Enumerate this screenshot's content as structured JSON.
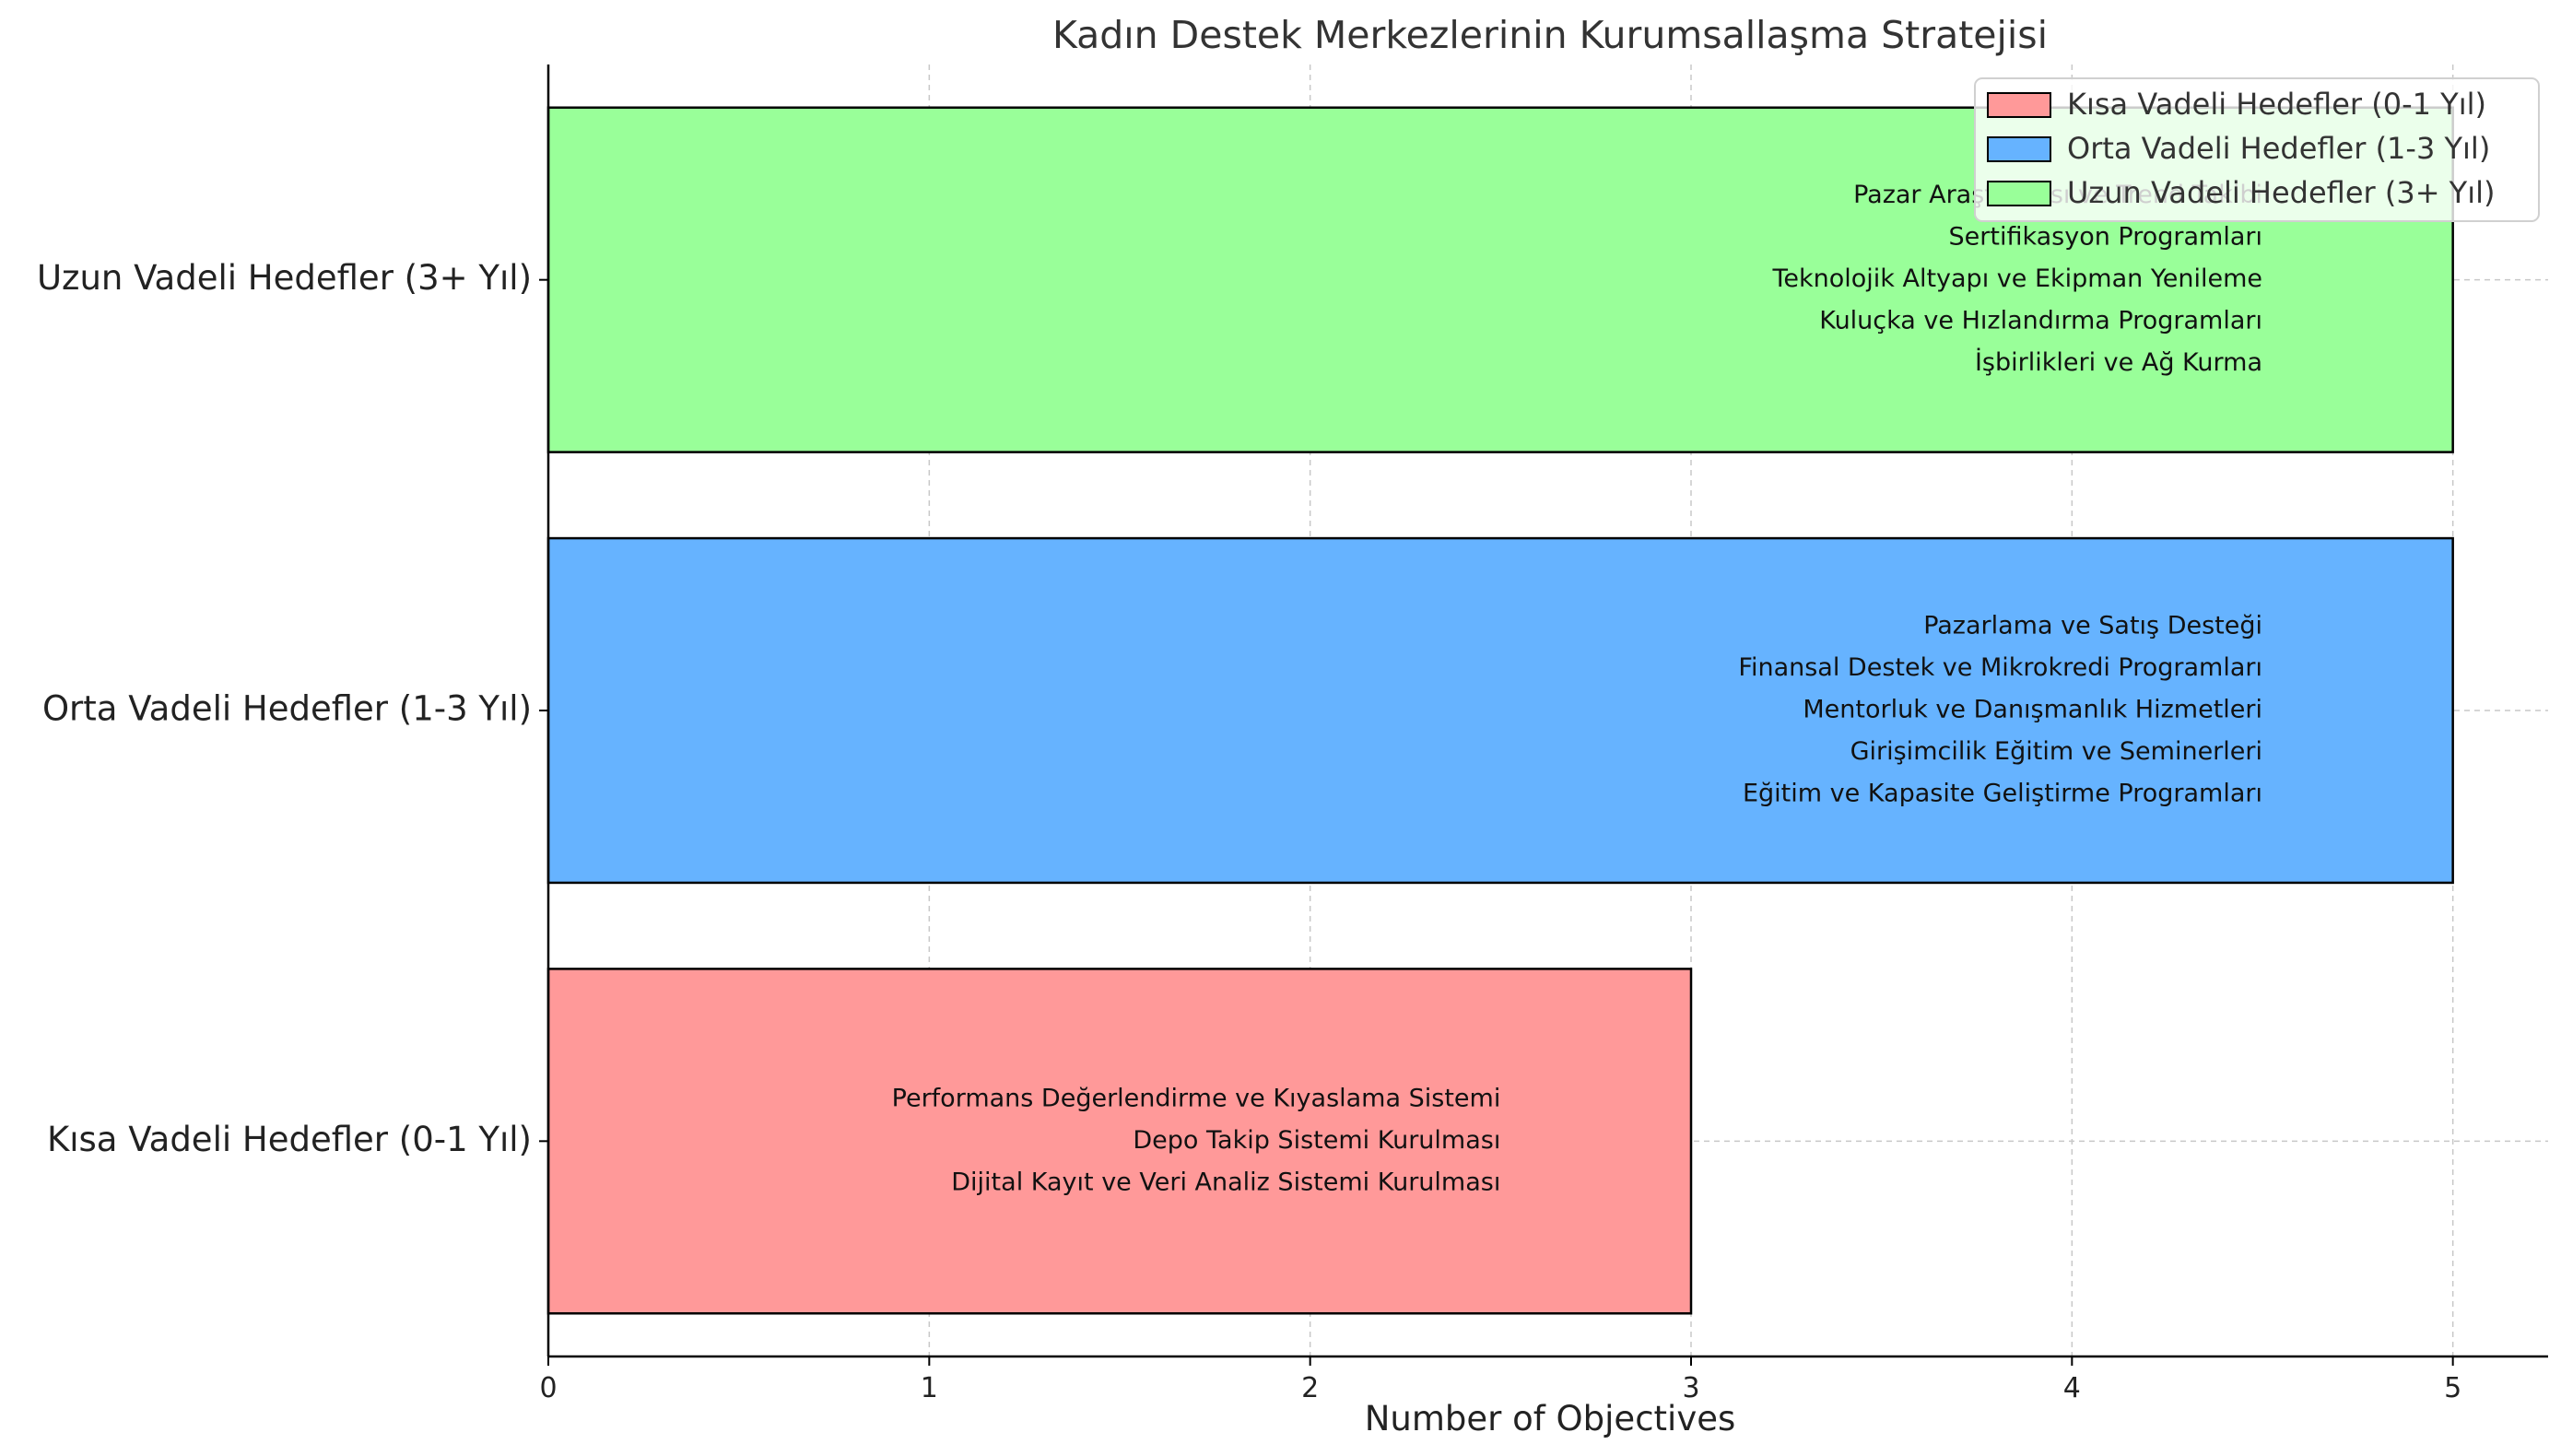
{
  "chart_data": {
    "type": "bar",
    "orientation": "horizontal",
    "title": "Kadın Destek Merkezlerinin Kurumsallaşma Stratejisi",
    "xlabel": "Number of Objectives",
    "ylabel": "",
    "xlim": [
      0,
      5.25
    ],
    "xticks": [
      0,
      1,
      2,
      3,
      4,
      5
    ],
    "grid": true,
    "legend_position": "top-right",
    "categories": [
      "Kısa Vadeli Hedefler (0-1 Yıl)",
      "Orta Vadeli Hedefler (1-3 Yıl)",
      "Uzun Vadeli Hedefler (3+ Yıl)"
    ],
    "values": [
      3,
      5,
      5
    ],
    "colors": [
      "#ff9999",
      "#66b3ff",
      "#99ff99"
    ],
    "annotations": [
      [
        "Performans Değerlendirme ve Kıyaslama Sistemi",
        "Depo Takip Sistemi Kurulması",
        "Dijital Kayıt ve Veri Analiz Sistemi Kurulması"
      ],
      [
        "Pazarlama ve Satış Desteği",
        "Finansal Destek ve Mikrokredi Programları",
        "Mentorluk ve Danışmanlık Hizmetleri",
        "Girişimcilik Eğitim ve Seminerleri",
        "Eğitim ve Kapasite Geliştirme Programları"
      ],
      [
        "Pazar Araştırması ve Trend Takibi",
        "Sertifikasyon Programları",
        "Teknolojik Altyapı ve Ekipman Yenileme",
        "Kuluçka ve Hızlandırma Programları",
        "İşbirlikleri ve Ağ Kurma"
      ]
    ],
    "legend": [
      "Kısa Vadeli Hedefler (0-1 Yıl)",
      "Orta Vadeli Hedefler (1-3 Yıl)",
      "Uzun Vadeli Hedefler (3+ Yıl)"
    ]
  }
}
